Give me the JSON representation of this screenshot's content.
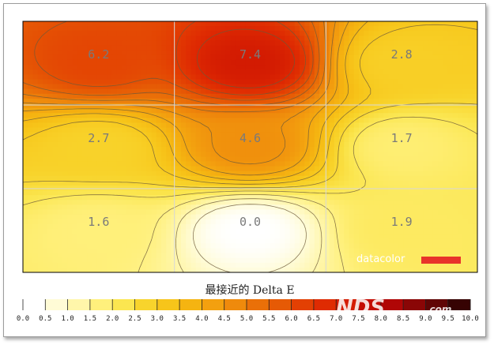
{
  "chart_data": {
    "type": "heatmap",
    "title": "最接近的 Delta E",
    "grid_rows": 3,
    "grid_cols": 3,
    "values": [
      [
        6.2,
        7.4,
        2.8
      ],
      [
        2.7,
        4.6,
        1.7
      ],
      [
        1.6,
        0.0,
        1.9
      ]
    ],
    "value_labels": [
      [
        "6.2",
        "7.4",
        "2.8"
      ],
      [
        "2.7",
        "4.6",
        "1.7"
      ],
      [
        "1.6",
        "0.0",
        "1.9"
      ]
    ],
    "scale": {
      "min": 0,
      "max": 10,
      "step": 0.5,
      "tick_labels": [
        "0.0",
        "0.5",
        "1.0",
        "1.5",
        "2.0",
        "2.5",
        "3.0",
        "3.5",
        "4.0",
        "4.5",
        "5.0",
        "5.5",
        "6.0",
        "6.5",
        "7.0",
        "7.5",
        "8.0",
        "8.5",
        "9.0",
        "9.5",
        "10.0"
      ],
      "colors": [
        "#ffffff",
        "#fffbd6",
        "#fff6aa",
        "#fff07c",
        "#fbe650",
        "#f8d42c",
        "#f7c51a",
        "#f5b411",
        "#f3a00f",
        "#ef8a0c",
        "#ea7008",
        "#e65a05",
        "#e34003",
        "#df2b02",
        "#d41c02",
        "#c40c03",
        "#b00606",
        "#8a0606",
        "#600505",
        "#360303"
      ]
    },
    "contours": true,
    "grid": true
  },
  "branding": {
    "logo_text": "datacolor",
    "logo_bar_color": "#e8332a",
    "watermark_text": "NDS",
    "watermark_suffix": ".com"
  }
}
